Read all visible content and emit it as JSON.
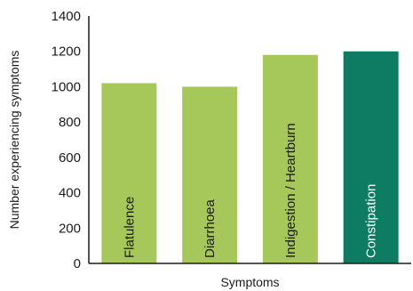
{
  "chart_data": {
    "type": "bar",
    "title": "",
    "xlabel": "Symptoms",
    "ylabel": "Number experiencing symptoms",
    "ylim": [
      0,
      1400
    ],
    "yticks": [
      0,
      200,
      400,
      600,
      800,
      1000,
      1200,
      1400
    ],
    "grid": false,
    "categories": [
      "Flatulence",
      "Diarrhoea",
      "Indigestion / Heartburn",
      "Constipation"
    ],
    "values": [
      1020,
      1000,
      1180,
      1200
    ],
    "colors": [
      "#a6c85a",
      "#a6c85a",
      "#a6c85a",
      "#0e7b63"
    ],
    "label_colors": [
      "#1a1a1a",
      "#1a1a1a",
      "#1a1a1a",
      "#ffffff"
    ]
  }
}
